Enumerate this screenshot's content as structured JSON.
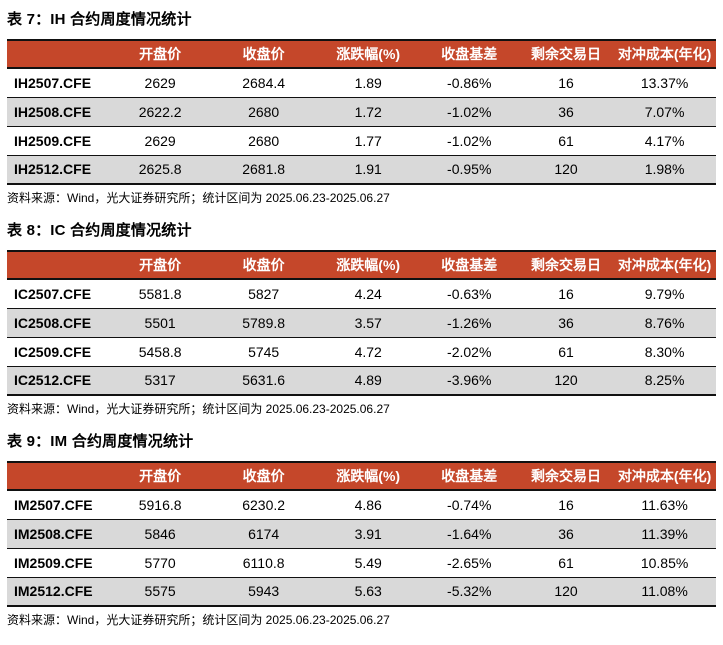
{
  "colors": {
    "header_bg": "#C5472A",
    "header_text": "#FFFFFF",
    "alt_row_bg": "#D9D9D9",
    "border": "#000000"
  },
  "tables": [
    {
      "title": "表 7：IH 合约周度情况统计",
      "headers": [
        "",
        "开盘价",
        "收盘价",
        "涨跌幅(%)",
        "收盘基差",
        "剩余交易日",
        "对冲成本(年化)"
      ],
      "rows": [
        [
          "IH2507.CFE",
          "2629",
          "2684.4",
          "1.89",
          "-0.86%",
          "16",
          "13.37%"
        ],
        [
          "IH2508.CFE",
          "2622.2",
          "2680",
          "1.72",
          "-1.02%",
          "36",
          "7.07%"
        ],
        [
          "IH2509.CFE",
          "2629",
          "2680",
          "1.77",
          "-1.02%",
          "61",
          "4.17%"
        ],
        [
          "IH2512.CFE",
          "2625.8",
          "2681.8",
          "1.91",
          "-0.95%",
          "120",
          "1.98%"
        ]
      ],
      "source": "资料来源：Wind，光大证券研究所；统计区间为 2025.06.23-2025.06.27"
    },
    {
      "title": "表 8：IC 合约周度情况统计",
      "headers": [
        "",
        "开盘价",
        "收盘价",
        "涨跌幅(%)",
        "收盘基差",
        "剩余交易日",
        "对冲成本(年化)"
      ],
      "rows": [
        [
          "IC2507.CFE",
          "5581.8",
          "5827",
          "4.24",
          "-0.63%",
          "16",
          "9.79%"
        ],
        [
          "IC2508.CFE",
          "5501",
          "5789.8",
          "3.57",
          "-1.26%",
          "36",
          "8.76%"
        ],
        [
          "IC2509.CFE",
          "5458.8",
          "5745",
          "4.72",
          "-2.02%",
          "61",
          "8.30%"
        ],
        [
          "IC2512.CFE",
          "5317",
          "5631.6",
          "4.89",
          "-3.96%",
          "120",
          "8.25%"
        ]
      ],
      "source": "资料来源：Wind，光大证券研究所；统计区间为 2025.06.23-2025.06.27"
    },
    {
      "title": "表 9：IM 合约周度情况统计",
      "headers": [
        "",
        "开盘价",
        "收盘价",
        "涨跌幅(%)",
        "收盘基差",
        "剩余交易日",
        "对冲成本(年化)"
      ],
      "rows": [
        [
          "IM2507.CFE",
          "5916.8",
          "6230.2",
          "4.86",
          "-0.74%",
          "16",
          "11.63%"
        ],
        [
          "IM2508.CFE",
          "5846",
          "6174",
          "3.91",
          "-1.64%",
          "36",
          "11.39%"
        ],
        [
          "IM2509.CFE",
          "5770",
          "6110.8",
          "5.49",
          "-2.65%",
          "61",
          "10.85%"
        ],
        [
          "IM2512.CFE",
          "5575",
          "5943",
          "5.63",
          "-5.32%",
          "120",
          "11.08%"
        ]
      ],
      "source": "资料来源：Wind，光大证券研究所；统计区间为 2025.06.23-2025.06.27"
    }
  ]
}
